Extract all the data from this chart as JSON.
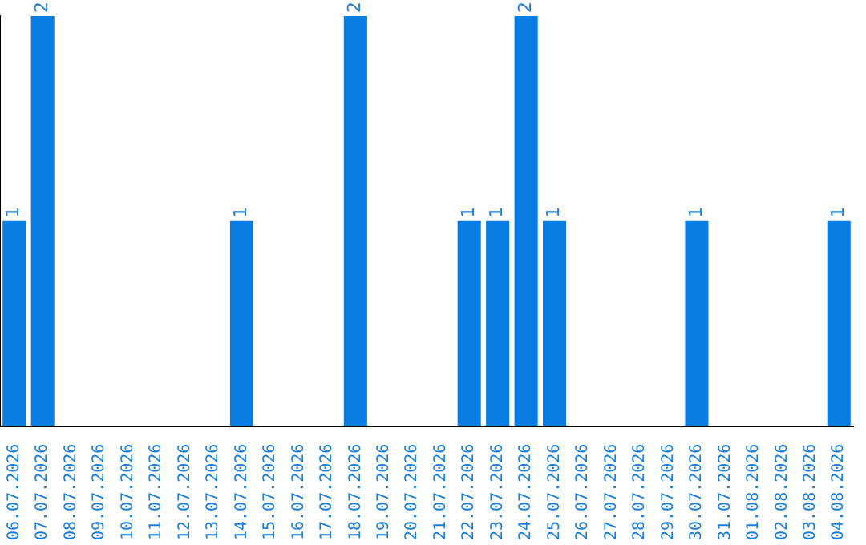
{
  "chart_data": {
    "type": "bar",
    "categories": [
      "06.07.2026",
      "07.07.2026",
      "08.07.2026",
      "09.07.2026",
      "10.07.2026",
      "11.07.2026",
      "12.07.2026",
      "13.07.2026",
      "14.07.2026",
      "15.07.2026",
      "16.07.2026",
      "17.07.2026",
      "18.07.2026",
      "19.07.2026",
      "20.07.2026",
      "21.07.2026",
      "22.07.2026",
      "23.07.2026",
      "24.07.2026",
      "25.07.2026",
      "26.07.2026",
      "27.07.2026",
      "28.07.2026",
      "29.07.2026",
      "30.07.2026",
      "31.07.2026",
      "01.08.2026",
      "02.08.2026",
      "03.08.2026",
      "04.08.2026"
    ],
    "values": [
      1,
      2,
      0,
      0,
      0,
      0,
      0,
      0,
      1,
      0,
      0,
      0,
      2,
      0,
      0,
      0,
      1,
      1,
      2,
      1,
      0,
      0,
      0,
      0,
      1,
      0,
      0,
      0,
      0,
      1
    ],
    "value_labels": [
      "1",
      "2",
      null,
      null,
      null,
      null,
      null,
      null,
      "1",
      null,
      null,
      null,
      "2",
      null,
      null,
      null,
      "1",
      "1",
      "2",
      "1",
      null,
      null,
      null,
      null,
      "1",
      null,
      null,
      null,
      null,
      "1"
    ],
    "color": "#0a7de3",
    "ylim": [
      0,
      2
    ],
    "tick_labels": "x",
    "grid": false,
    "legend": false
  }
}
